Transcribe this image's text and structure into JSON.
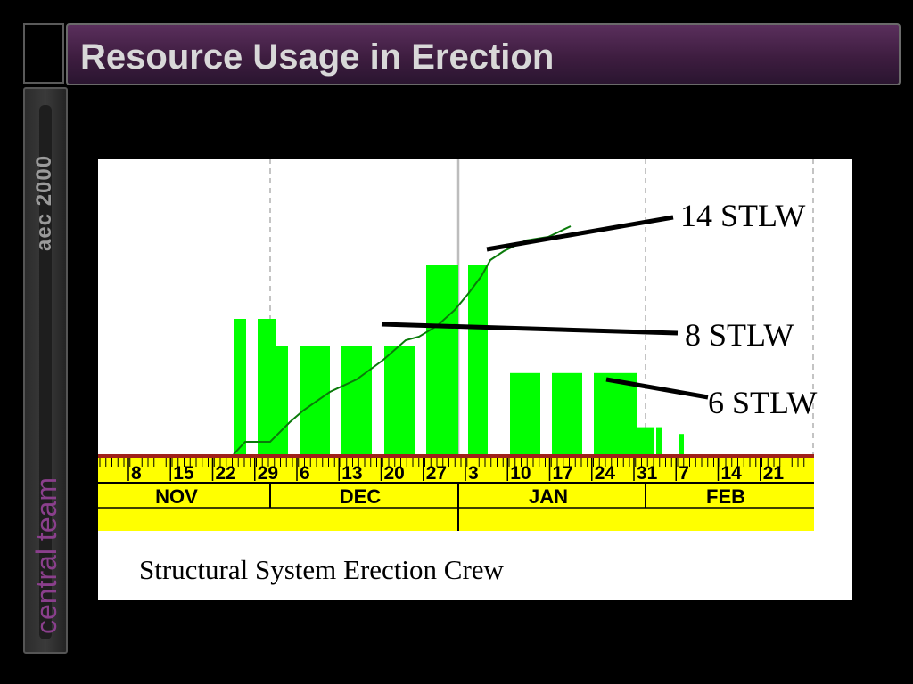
{
  "slide": {
    "title": "Resource Usage in Erection",
    "sidebar_top": "aec 2000",
    "sidebar_bottom": "central team"
  },
  "chart_data": {
    "type": "bar",
    "caption": "Structural System Erection Crew",
    "week_ticks": [
      "8",
      "15",
      "22",
      "29",
      "6",
      "13",
      "20",
      "27",
      "3",
      "10",
      "17",
      "24",
      "31",
      "7",
      "14",
      "21"
    ],
    "months": [
      "NOV",
      "DEC",
      "JAN",
      "FEB"
    ],
    "bars": [
      {
        "week": "22",
        "crew": 10
      },
      {
        "week": "29",
        "crew": 10
      },
      {
        "week": "29",
        "crew": 8
      },
      {
        "week": "6",
        "crew": 8
      },
      {
        "week": "13",
        "crew": 8
      },
      {
        "week": "20",
        "crew": 8
      },
      {
        "week": "27",
        "crew": 14
      },
      {
        "week": "3",
        "crew": 14
      },
      {
        "week": "3",
        "crew": 6
      },
      {
        "week": "10",
        "crew": 6
      },
      {
        "week": "17",
        "crew": 6
      },
      {
        "week": "24",
        "crew": 2
      },
      {
        "week": "31",
        "crew": 2
      },
      {
        "week": "7",
        "crew": 1.5
      }
    ],
    "cumulative_line": true,
    "callouts": [
      "14 STLW",
      "8 STLW",
      "6 STLW"
    ],
    "colors": {
      "bars": "#00ff00",
      "line": "#0a7a0a",
      "axis": "#ffff00",
      "callout": "#000000"
    }
  }
}
